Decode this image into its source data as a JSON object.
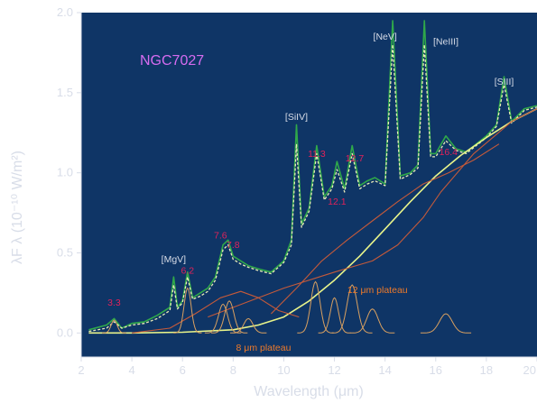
{
  "chart_data": {
    "type": "line",
    "title": "NGC7027",
    "xlabel": "Wavelength (μm)",
    "ylabel": "λF λ (10⁻¹⁰ W/m²)",
    "xlim": [
      2,
      20
    ],
    "ylim": [
      -0.15,
      2.0
    ],
    "x_ticks": [
      2,
      4,
      6,
      8,
      10,
      12,
      14,
      16,
      18,
      20
    ],
    "y_ticks": [
      0.0,
      0.5,
      1.0,
      1.5,
      2.0
    ],
    "x_tick_labels": [
      "2",
      "4",
      "6",
      "8",
      "10",
      "12",
      "14",
      "16",
      "18",
      "20"
    ],
    "y_tick_labels": [
      "0.0",
      "0.5",
      "1.0",
      "1.5",
      "2.0"
    ],
    "grid": false,
    "colors": {
      "background": "#0f3566",
      "observed": "#2fa84a",
      "model": "#e8ecb8",
      "continuum": "#e8f48a",
      "plateau": "#c55a3a",
      "feature": "#d9a060",
      "title": "#d66cf0",
      "band_label": "#e0225a",
      "line_label": "#d8dde8",
      "plateau_label": "#ee7a2a"
    },
    "series": [
      {
        "x": [
          2.3,
          3.0,
          3.3,
          3.6,
          4.0,
          4.5,
          5.0,
          5.5,
          5.65,
          5.8,
          6.0,
          6.2,
          6.4,
          6.7,
          7.0,
          7.3,
          7.6,
          7.8,
          8.0,
          8.3,
          8.6,
          9.0,
          9.5,
          10.0,
          10.3,
          10.5,
          10.7,
          11.0,
          11.3,
          11.6,
          11.9,
          12.1,
          12.4,
          12.7,
          13.0,
          13.3,
          13.6,
          14.0,
          14.3,
          14.6,
          15.0,
          15.3,
          15.55,
          15.8,
          16.0,
          16.4,
          16.8,
          17.2,
          17.6,
          18.0,
          18.4,
          18.7,
          19.0,
          19.5,
          20.0
        ],
        "values": [
          0.02,
          0.05,
          0.09,
          0.03,
          0.06,
          0.07,
          0.11,
          0.16,
          0.35,
          0.16,
          0.2,
          0.38,
          0.22,
          0.25,
          0.28,
          0.35,
          0.55,
          0.58,
          0.48,
          0.45,
          0.42,
          0.4,
          0.38,
          0.45,
          0.58,
          1.3,
          0.68,
          0.78,
          1.17,
          0.85,
          0.92,
          1.07,
          0.9,
          1.17,
          0.92,
          0.95,
          0.97,
          0.93,
          1.95,
          0.98,
          1.0,
          1.05,
          1.95,
          1.12,
          1.12,
          1.23,
          1.15,
          1.13,
          1.18,
          1.23,
          1.3,
          1.6,
          1.32,
          1.4,
          1.42
        ]
      },
      {
        "x": [
          2.3,
          3.0,
          3.3,
          3.6,
          4.0,
          4.5,
          5.0,
          5.5,
          5.65,
          5.8,
          6.0,
          6.2,
          6.4,
          6.7,
          7.0,
          7.3,
          7.6,
          7.8,
          8.0,
          8.3,
          8.6,
          9.0,
          9.5,
          10.0,
          10.3,
          10.5,
          10.7,
          11.0,
          11.3,
          11.6,
          11.9,
          12.1,
          12.4,
          12.7,
          13.0,
          13.3,
          13.6,
          14.0,
          14.3,
          14.6,
          15.0,
          15.3,
          15.55,
          15.8,
          16.0,
          16.4,
          16.8,
          17.2,
          17.6,
          18.0,
          18.4,
          18.7,
          19.0,
          19.5,
          20.0
        ],
        "values": [
          0.01,
          0.03,
          0.07,
          0.03,
          0.05,
          0.06,
          0.09,
          0.14,
          0.3,
          0.15,
          0.19,
          0.35,
          0.21,
          0.23,
          0.26,
          0.33,
          0.52,
          0.55,
          0.46,
          0.43,
          0.41,
          0.39,
          0.37,
          0.44,
          0.55,
          1.18,
          0.66,
          0.76,
          1.12,
          0.83,
          0.9,
          1.02,
          0.88,
          1.12,
          0.9,
          0.93,
          0.95,
          0.92,
          1.8,
          0.96,
          0.99,
          1.03,
          1.8,
          1.1,
          1.1,
          1.2,
          1.14,
          1.12,
          1.17,
          1.22,
          1.29,
          1.55,
          1.31,
          1.39,
          1.41
        ]
      },
      {
        "x": [
          2.3,
          4.0,
          6.0,
          8.0,
          9.0,
          10.0,
          11.0,
          12.0,
          13.0,
          14.0,
          15.0,
          16.0,
          17.0,
          18.0,
          19.0,
          20.0
        ],
        "values": [
          0.0,
          0.0,
          0.005,
          0.02,
          0.05,
          0.1,
          0.2,
          0.33,
          0.48,
          0.65,
          0.82,
          0.98,
          1.11,
          1.22,
          1.32,
          1.4
        ]
      },
      {
        "x": [
          4.0,
          5.5,
          6.5,
          7.5,
          8.3,
          9.0,
          9.8,
          10.6
        ],
        "values": [
          0.0,
          0.03,
          0.12,
          0.22,
          0.26,
          0.22,
          0.14,
          0.1
        ]
      },
      {
        "x": [
          9.5,
          10.5,
          11.5,
          12.5,
          13.5,
          14.5,
          15.5,
          16.5,
          17.5,
          18.5
        ],
        "values": [
          0.12,
          0.28,
          0.45,
          0.58,
          0.7,
          0.82,
          0.93,
          1.0,
          1.08,
          1.18
        ]
      },
      {
        "x": [
          7.0,
          10.0,
          12.0,
          13.5,
          14.5,
          15.5,
          16.2,
          17.5,
          19.0,
          20.0
        ],
        "values": [
          0.1,
          0.28,
          0.38,
          0.45,
          0.55,
          0.72,
          0.88,
          1.12,
          1.32,
          1.4
        ]
      }
    ],
    "features": [
      {
        "x": 3.3,
        "height": 0.08,
        "width": 0.12
      },
      {
        "x": 6.2,
        "height": 0.28,
        "width": 0.14
      },
      {
        "x": 7.6,
        "height": 0.18,
        "width": 0.18
      },
      {
        "x": 7.85,
        "height": 0.2,
        "width": 0.18
      },
      {
        "x": 8.6,
        "height": 0.09,
        "width": 0.18
      },
      {
        "x": 11.25,
        "height": 0.32,
        "width": 0.18
      },
      {
        "x": 12.0,
        "height": 0.22,
        "width": 0.16
      },
      {
        "x": 12.7,
        "height": 0.3,
        "width": 0.2
      },
      {
        "x": 13.5,
        "height": 0.15,
        "width": 0.22
      },
      {
        "x": 16.4,
        "height": 0.12,
        "width": 0.25
      }
    ],
    "annotations": {
      "bands": [
        {
          "text": "3.3",
          "x": 3.3,
          "y": 0.17
        },
        {
          "text": "6.2",
          "x": 6.2,
          "y": 0.37
        },
        {
          "text": "7.6",
          "x": 7.5,
          "y": 0.59
        },
        {
          "text": "7.8",
          "x": 8.0,
          "y": 0.53
        },
        {
          "text": "11.3",
          "x": 11.3,
          "y": 1.1
        },
        {
          "text": "12.1",
          "x": 12.1,
          "y": 0.8
        },
        {
          "text": "12.7",
          "x": 12.8,
          "y": 1.07
        },
        {
          "text": "16.4",
          "x": 16.5,
          "y": 1.11
        }
      ],
      "lines": [
        {
          "text": "[MgV]",
          "x": 5.65,
          "y": 0.44
        },
        {
          "text": "[SiIV]",
          "x": 10.5,
          "y": 1.33
        },
        {
          "text": "[NeV]",
          "x": 14.0,
          "y": 1.83
        },
        {
          "text": "[NeIII]",
          "x": 16.4,
          "y": 1.8
        },
        {
          "text": "[SIII]",
          "x": 18.7,
          "y": 1.55
        }
      ],
      "plateaus": [
        {
          "text": "8 μm plateau",
          "x": 9.2,
          "y": -0.11
        },
        {
          "text": "12 μm plateau",
          "x": 13.7,
          "y": 0.25
        }
      ]
    }
  }
}
